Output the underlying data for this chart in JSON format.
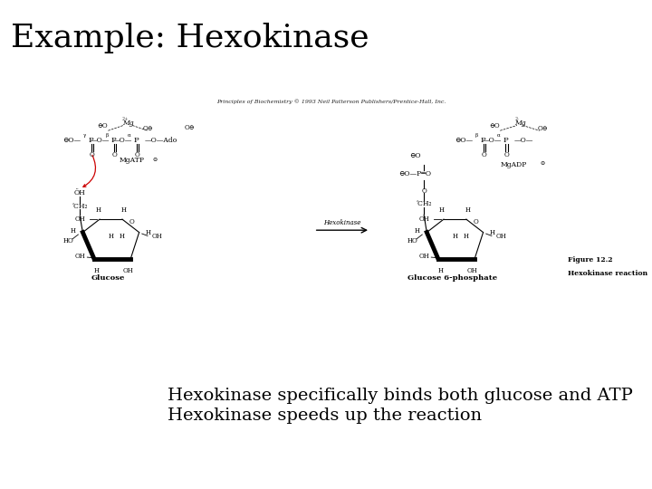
{
  "title": "Example: Hexokinase",
  "title_fontsize": 26,
  "title_color": "#000000",
  "background_color": "#ffffff",
  "copyright_text": "Principles of Biochemistry © 1993 Neil Patterson Publishers/Prentice-Hall, Inc.",
  "body_lines": [
    "Hexokinase specifically binds both glucose and ATP",
    "Hexokinase speeds up the reaction"
  ],
  "body_fontsize": 14,
  "figure_caption_line1": "Figure 12.2",
  "figure_caption_line2": "Hexokinase reaction"
}
